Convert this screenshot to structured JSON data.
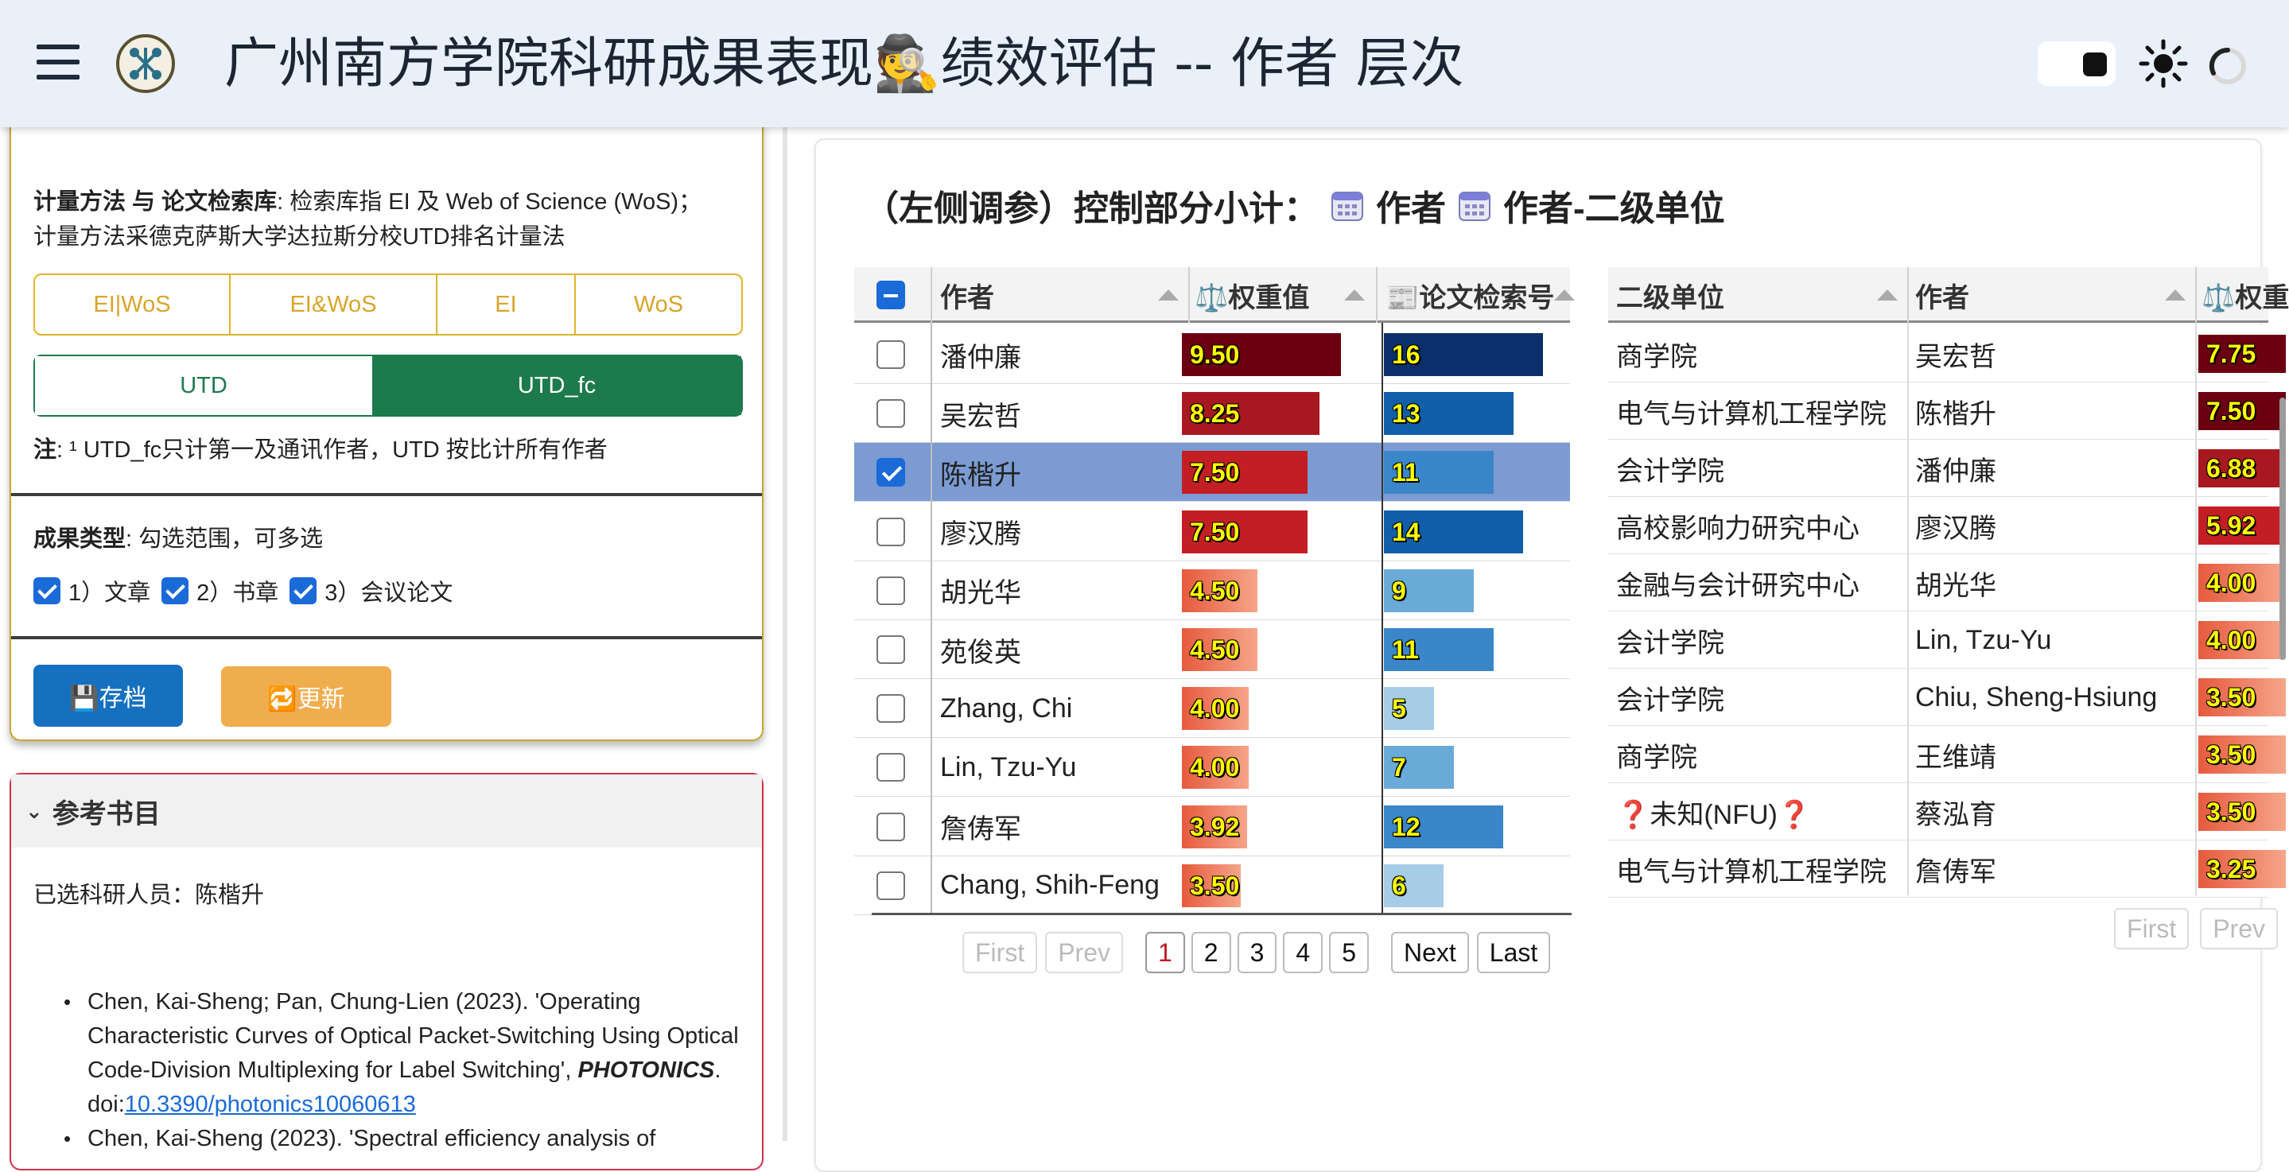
{
  "header": {
    "title": "广州南方学院科研成果表现🕵️绩效评估 -- 作者 层次"
  },
  "control_panel": {
    "method_label": "计量方法 与 论文检索库",
    "method_desc_line1": ": 检索库指 EI 及 Web of Science (WoS)；",
    "method_desc_line2": "计量方法采德克萨斯大学达拉斯分校UTD排名计量法",
    "db_options": [
      "EI|WoS",
      "EI&WoS",
      "EI",
      "WoS"
    ],
    "method_options": [
      "UTD",
      "UTD_fc"
    ],
    "method_selected": "UTD_fc",
    "note_label": "注",
    "note_text": ": ¹ UTD_fc只计第一及通讯作者，UTD 按比计所有作者",
    "types_label": "成果类型",
    "types_desc": ": 勾选范围，可多选",
    "types": [
      "1）文章",
      "2）书章",
      "3）会议论文"
    ],
    "save_label": "💾存档",
    "refresh_label": "🔁更新"
  },
  "bibliography": {
    "title": "参考书目",
    "selected_text": "已选科研人员：陈楷升",
    "entries": [
      {
        "text": "Chen, Kai-Sheng; Pan, Chung-Lien (2023). 'Operating Characteristic Curves of Optical Packet-Switching Using Optical Code-Division Multiplexing for Label Switching',",
        "journal": "PHOTONICS",
        "doi_prefix": ". doi:",
        "doi": "10.3390/photonics10060613"
      },
      {
        "text": "Chen, Kai-Sheng (2023). 'Spectral efficiency analysis of"
      }
    ]
  },
  "main": {
    "title": "（左侧调参）控制部分小计：",
    "tag1": "作者",
    "tag2": "作者-二级单位",
    "author_table": {
      "headers": [
        "作者",
        "⚖️权重值",
        "📰论文检索号"
      ],
      "rows": [
        {
          "name": "潘仲廉",
          "weight": 9.5,
          "weight_label": "9.50",
          "count": 16,
          "selected": false
        },
        {
          "name": "吴宏哲",
          "weight": 8.25,
          "weight_label": "8.25",
          "count": 13,
          "selected": false
        },
        {
          "name": "陈楷升",
          "weight": 7.5,
          "weight_label": "7.50",
          "count": 11,
          "selected": true
        },
        {
          "name": "廖汉腾",
          "weight": 7.5,
          "weight_label": "7.50",
          "count": 14,
          "selected": false
        },
        {
          "name": "胡光华",
          "weight": 4.5,
          "weight_label": "4.50",
          "count": 9,
          "selected": false
        },
        {
          "name": "苑俊英",
          "weight": 4.5,
          "weight_label": "4.50",
          "count": 11,
          "selected": false
        },
        {
          "name": "Zhang, Chi",
          "weight": 4.0,
          "weight_label": "4.00",
          "count": 5,
          "selected": false
        },
        {
          "name": "Lin, Tzu-Yu",
          "weight": 4.0,
          "weight_label": "4.00",
          "count": 7,
          "selected": false
        },
        {
          "name": "詹俦军",
          "weight": 3.92,
          "weight_label": "3.92",
          "count": 12,
          "selected": false
        },
        {
          "name": "Chang, Shih-Feng",
          "weight": 3.5,
          "weight_label": "3.50",
          "count": 6,
          "selected": false
        }
      ],
      "pager": {
        "first": "First",
        "prev": "Prev",
        "pages": [
          "1",
          "2",
          "3",
          "4",
          "5"
        ],
        "current": "1",
        "next": "Next",
        "last": "Last"
      }
    },
    "unit_table": {
      "headers": [
        "二级单位",
        "作者",
        "⚖️权重"
      ],
      "rows": [
        {
          "unit": "商学院",
          "author": "吴宏哲",
          "weight": 7.75,
          "weight_label": "7.75"
        },
        {
          "unit": "电气与计算机工程学院",
          "author": "陈楷升",
          "weight": 7.5,
          "weight_label": "7.50"
        },
        {
          "unit": "会计学院",
          "author": "潘仲廉",
          "weight": 6.88,
          "weight_label": "6.88"
        },
        {
          "unit": "高校影响力研究中心",
          "author": "廖汉腾",
          "weight": 5.92,
          "weight_label": "5.92"
        },
        {
          "unit": "金融与会计研究中心",
          "author": "胡光华",
          "weight": 4.0,
          "weight_label": "4.00"
        },
        {
          "unit": "会计学院",
          "author": "Lin, Tzu-Yu",
          "weight": 4.0,
          "weight_label": "4.00"
        },
        {
          "unit": "会计学院",
          "author": "Chiu, Sheng-Hsiung",
          "weight": 3.5,
          "weight_label": "3.50"
        },
        {
          "unit": "商学院",
          "author": "王维靖",
          "weight": 3.5,
          "weight_label": "3.50"
        },
        {
          "unit": "❓未知(NFU)❓",
          "author": "蔡泓育",
          "weight": 3.5,
          "weight_label": "3.50"
        },
        {
          "unit": "电气与计算机工程学院",
          "author": "詹俦军",
          "weight": 3.25,
          "weight_label": "3.25"
        }
      ],
      "pager": {
        "first": "First",
        "prev": "Prev"
      }
    }
  },
  "colors": {
    "accent_green": "#1d7a4c",
    "accent_gold": "#e0b52b",
    "save_blue": "#1570c0",
    "refresh_orange": "#f0ad4e",
    "selected_row": "#7b9bd2"
  }
}
